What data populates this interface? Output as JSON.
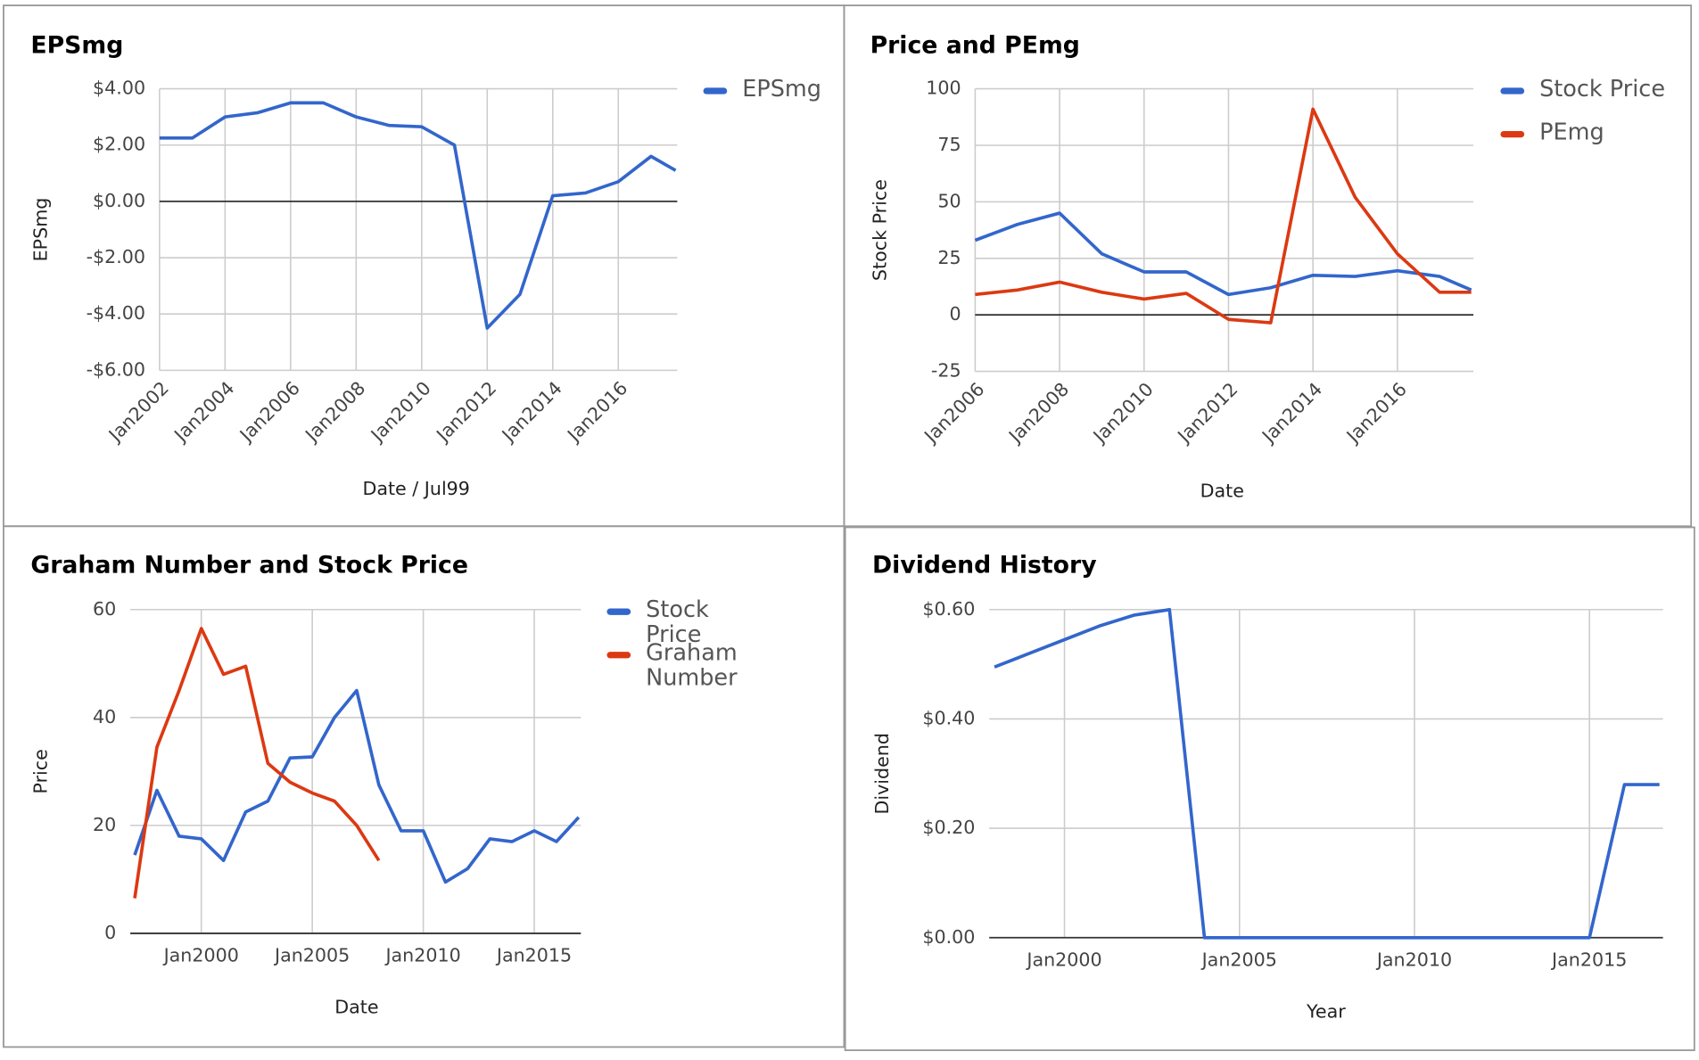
{
  "chart_data": [
    {
      "type": "line",
      "title": "EPSmg",
      "x_label": "Date / Jul99",
      "y_label": "EPSmg",
      "x": [
        2002,
        2003,
        2004,
        2005,
        2006,
        2007,
        2008,
        2009,
        2010,
        2011,
        2012,
        2013,
        2014,
        2015,
        2016,
        2017,
        2017.75
      ],
      "series": [
        {
          "name": "EPSmg",
          "color": "#3366cc",
          "values": [
            2.25,
            2.25,
            3.0,
            3.15,
            3.5,
            3.5,
            3.0,
            2.7,
            2.65,
            2.0,
            -4.5,
            -3.3,
            0.2,
            0.3,
            0.7,
            1.6,
            1.1
          ]
        }
      ],
      "xlim": [
        2002,
        2017.8
      ],
      "ylim": [
        -6,
        4
      ],
      "xticks": [
        {
          "value": 2002,
          "label": "Jan2002"
        },
        {
          "value": 2004,
          "label": "Jan2004"
        },
        {
          "value": 2006,
          "label": "Jan2006"
        },
        {
          "value": 2008,
          "label": "Jan2008"
        },
        {
          "value": 2010,
          "label": "Jan2010"
        },
        {
          "value": 2012,
          "label": "Jan2012"
        },
        {
          "value": 2014,
          "label": "Jan2014"
        },
        {
          "value": 2016,
          "label": "Jan2016"
        }
      ],
      "yticks": [
        {
          "value": -6,
          "label": "-$6.00"
        },
        {
          "value": -4,
          "label": "-$4.00"
        },
        {
          "value": -2,
          "label": "-$2.00"
        },
        {
          "value": 0,
          "label": "$0.00"
        },
        {
          "value": 2,
          "label": "$2.00"
        },
        {
          "value": 4,
          "label": "$4.00"
        }
      ],
      "grid": true,
      "legend": "right"
    },
    {
      "type": "line",
      "title": "Price and PEmg",
      "x_label": "Date",
      "y_label": "Stock Price",
      "x": [
        2006,
        2007,
        2008,
        2009,
        2010,
        2011,
        2012,
        2013,
        2014,
        2015,
        2016,
        2017,
        2017.75
      ],
      "series": [
        {
          "name": "Stock Price",
          "color": "#3366cc",
          "values": [
            33,
            40,
            45,
            27,
            19,
            19,
            9,
            12,
            17.5,
            17,
            19.5,
            17,
            11
          ]
        },
        {
          "name": "PEmg",
          "color": "#dc3912",
          "values": [
            9,
            11,
            14.5,
            10,
            7,
            9.5,
            -2,
            -3.5,
            91,
            52,
            27,
            10,
            10
          ]
        }
      ],
      "xlim": [
        2006,
        2017.8
      ],
      "ylim": [
        -25,
        100
      ],
      "xticks": [
        {
          "value": 2006,
          "label": "Jan2006"
        },
        {
          "value": 2008,
          "label": "Jan2008"
        },
        {
          "value": 2010,
          "label": "Jan2010"
        },
        {
          "value": 2012,
          "label": "Jan2012"
        },
        {
          "value": 2014,
          "label": "Jan2014"
        },
        {
          "value": 2016,
          "label": "Jan2016"
        }
      ],
      "yticks": [
        -25,
        0,
        25,
        50,
        75,
        100
      ],
      "grid": true,
      "legend": "right"
    },
    {
      "type": "line",
      "title": "Graham Number and Stock Price",
      "x_label": "Date",
      "y_label": "Price",
      "x": [
        1997,
        1998,
        1999,
        2000,
        2001,
        2002,
        2003,
        2004,
        2005,
        2006,
        2007,
        2008,
        2009,
        2010,
        2011,
        2012,
        2013,
        2014,
        2015,
        2016,
        2017
      ],
      "series": [
        {
          "name": "Stock Price",
          "color": "#3366cc",
          "values": [
            14.5,
            26.5,
            18,
            17.5,
            13.5,
            22.5,
            24.5,
            32.5,
            32.7,
            40,
            45,
            27.5,
            19,
            19,
            9.5,
            12,
            17.5,
            17,
            19,
            17,
            21.5
          ]
        },
        {
          "name": "Graham Number",
          "color": "#dc3912",
          "values": [
            6.5,
            34.5,
            45,
            56.5,
            48,
            49.5,
            31.5,
            28,
            26,
            24.5,
            20,
            13.5,
            null,
            null,
            null,
            null,
            null,
            null,
            null,
            null,
            null
          ]
        }
      ],
      "xlim": [
        1996.8,
        2017.1
      ],
      "ylim": [
        0,
        60
      ],
      "xticks": [
        {
          "value": 2000,
          "label": "Jan2000"
        },
        {
          "value": 2005,
          "label": "Jan2005"
        },
        {
          "value": 2010,
          "label": "Jan2010"
        },
        {
          "value": 2015,
          "label": "Jan2015"
        }
      ],
      "yticks": [
        0,
        20,
        40,
        60
      ],
      "grid": true,
      "legend": "right"
    },
    {
      "type": "line",
      "title": "Dividend History",
      "x_label": "Year",
      "y_label": "Dividend",
      "x": [
        1998,
        1999,
        2000,
        2001,
        2002,
        2003,
        2004,
        2005,
        2006,
        2007,
        2008,
        2009,
        2010,
        2011,
        2012,
        2013,
        2014,
        2015,
        2016,
        2017
      ],
      "series": [
        {
          "color": "#3366cc",
          "values": [
            0.495,
            0.52,
            0.545,
            0.57,
            0.59,
            0.6,
            0,
            0,
            0,
            0,
            0,
            0,
            0,
            0,
            0,
            0,
            0,
            0,
            0.28,
            0.28
          ]
        }
      ],
      "xlim": [
        1997.85,
        2017.1
      ],
      "ylim": [
        0,
        0.6
      ],
      "xticks": [
        {
          "value": 2000,
          "label": "Jan2000"
        },
        {
          "value": 2005,
          "label": "Jan2005"
        },
        {
          "value": 2010,
          "label": "Jan2010"
        },
        {
          "value": 2015,
          "label": "Jan2015"
        }
      ],
      "yticks": [
        {
          "value": 0,
          "label": "$0.00"
        },
        {
          "value": 0.2,
          "label": "$0.20"
        },
        {
          "value": 0.4,
          "label": "$0.40"
        },
        {
          "value": 0.6,
          "label": "$0.60"
        }
      ],
      "grid": true
    }
  ]
}
